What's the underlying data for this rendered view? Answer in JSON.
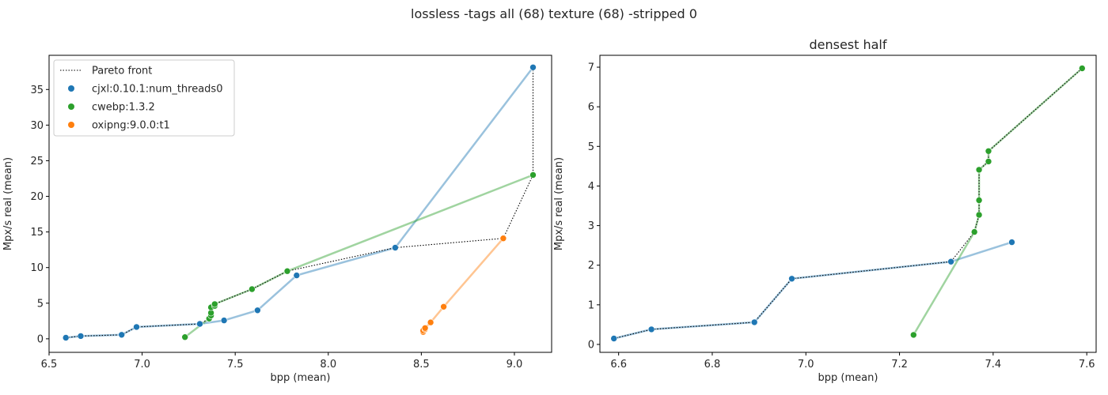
{
  "suptitle": "lossless -tags all (68) texture (68) -stripped 0",
  "colors": {
    "cjxl": "#1f77b4",
    "cwebp": "#2ca02c",
    "oxipng": "#ff7f0e",
    "pareto": "#000000"
  },
  "chart_data": [
    {
      "type": "scatter",
      "title": "",
      "xlabel": "bpp (mean)",
      "ylabel": "Mpx/s real (mean)",
      "xlim": [
        6.5,
        9.2
      ],
      "ylim": [
        -1.9,
        39.8
      ],
      "xticks": [
        "6.5",
        "7.0",
        "7.5",
        "8.0",
        "8.5",
        "9.0"
      ],
      "yticks": [
        "0",
        "5",
        "10",
        "15",
        "20",
        "25",
        "30",
        "35"
      ],
      "legend": {
        "position": "upper-left",
        "entries": [
          "Pareto front",
          "cjxl:0.10.1:num_threads0",
          "cwebp:1.3.2",
          "oxipng:9.0.0:t1"
        ]
      },
      "series": [
        {
          "name": "cjxl:0.10.1:num_threads0",
          "color_key": "cjxl",
          "points": [
            [
              6.59,
              0.15
            ],
            [
              6.67,
              0.38
            ],
            [
              6.89,
              0.56
            ],
            [
              6.97,
              1.66
            ],
            [
              7.31,
              2.09
            ],
            [
              7.44,
              2.58
            ],
            [
              7.62,
              4.0
            ],
            [
              7.83,
              8.9
            ],
            [
              8.36,
              12.8
            ],
            [
              9.1,
              38.1
            ]
          ]
        },
        {
          "name": "cwebp:1.3.2",
          "color_key": "cwebp",
          "points": [
            [
              7.23,
              0.24
            ],
            [
              7.36,
              2.84
            ],
            [
              7.37,
              3.27
            ],
            [
              7.37,
              3.64
            ],
            [
              7.37,
              4.41
            ],
            [
              7.39,
              4.62
            ],
            [
              7.39,
              4.88
            ],
            [
              7.59,
              6.97
            ],
            [
              7.78,
              9.5
            ],
            [
              9.1,
              23.0
            ]
          ]
        },
        {
          "name": "oxipng:9.0.0:t1",
          "color_key": "oxipng",
          "points": [
            [
              8.51,
              0.95
            ],
            [
              8.51,
              1.15
            ],
            [
              8.52,
              1.35
            ],
            [
              8.52,
              1.5
            ],
            [
              8.55,
              2.3
            ],
            [
              8.62,
              4.5
            ],
            [
              8.94,
              14.1
            ]
          ]
        }
      ],
      "pareto": {
        "name": "Pareto front",
        "points": [
          [
            6.59,
            0.15
          ],
          [
            6.67,
            0.38
          ],
          [
            6.89,
            0.56
          ],
          [
            6.97,
            1.66
          ],
          [
            7.31,
            2.09
          ],
          [
            7.36,
            2.84
          ],
          [
            7.37,
            3.27
          ],
          [
            7.37,
            3.64
          ],
          [
            7.37,
            4.41
          ],
          [
            7.39,
            4.62
          ],
          [
            7.39,
            4.88
          ],
          [
            7.59,
            6.97
          ],
          [
            7.78,
            9.5
          ],
          [
            8.36,
            12.8
          ],
          [
            8.94,
            14.1
          ],
          [
            9.1,
            23.0
          ],
          [
            9.1,
            38.1
          ]
        ]
      }
    },
    {
      "type": "scatter",
      "title": "densest half",
      "xlabel": "bpp (mean)",
      "ylabel": "Mpx/s real (mean)",
      "xlim": [
        6.56,
        7.62
      ],
      "ylim": [
        -0.2,
        7.3
      ],
      "xticks": [
        "6.6",
        "6.8",
        "7.0",
        "7.2",
        "7.4",
        "7.6"
      ],
      "yticks": [
        "0",
        "1",
        "2",
        "3",
        "4",
        "5",
        "6",
        "7"
      ],
      "series": [
        {
          "name": "cjxl:0.10.1:num_threads0",
          "color_key": "cjxl",
          "points": [
            [
              6.59,
              0.15
            ],
            [
              6.67,
              0.38
            ],
            [
              6.89,
              0.56
            ],
            [
              6.97,
              1.66
            ],
            [
              7.31,
              2.09
            ],
            [
              7.44,
              2.58
            ]
          ]
        },
        {
          "name": "cwebp:1.3.2",
          "color_key": "cwebp",
          "points": [
            [
              7.23,
              0.24
            ],
            [
              7.36,
              2.84
            ],
            [
              7.37,
              3.27
            ],
            [
              7.37,
              3.64
            ],
            [
              7.37,
              4.41
            ],
            [
              7.39,
              4.62
            ],
            [
              7.39,
              4.88
            ],
            [
              7.59,
              6.97
            ]
          ]
        }
      ],
      "pareto": {
        "name": "Pareto front",
        "points": [
          [
            6.59,
            0.15
          ],
          [
            6.67,
            0.38
          ],
          [
            6.89,
            0.56
          ],
          [
            6.97,
            1.66
          ],
          [
            7.31,
            2.09
          ],
          [
            7.36,
            2.84
          ],
          [
            7.37,
            3.27
          ],
          [
            7.37,
            3.64
          ],
          [
            7.37,
            4.41
          ],
          [
            7.39,
            4.62
          ],
          [
            7.39,
            4.88
          ],
          [
            7.59,
            6.97
          ]
        ]
      }
    }
  ]
}
